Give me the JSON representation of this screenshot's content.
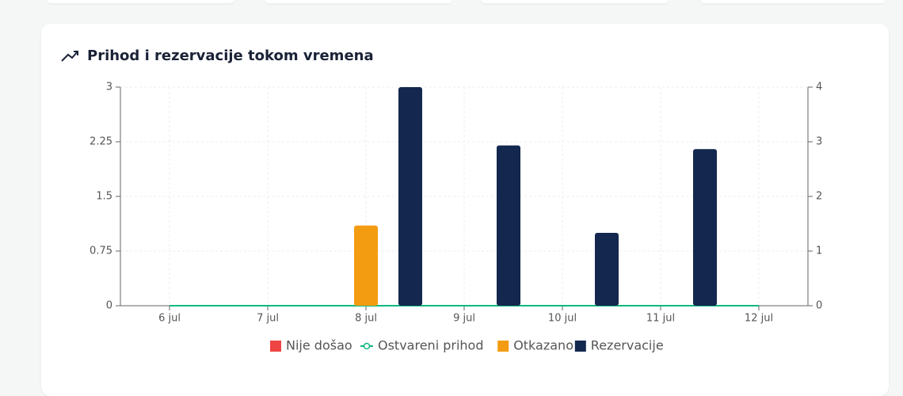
{
  "chart_data": {
    "type": "bar",
    "title": "Prihod i rezervacije tokom vremena",
    "categories": [
      "6 jul",
      "7 jul",
      "8 jul",
      "9 jul",
      "10 jul",
      "11 jul",
      "12 jul"
    ],
    "series": [
      {
        "name": "Nije došao",
        "color": "#ef4444",
        "type": "bar",
        "values": [
          0,
          0,
          0,
          0,
          0,
          0,
          0
        ]
      },
      {
        "name": "Ostvareni prihod",
        "color": "#10b981",
        "type": "line",
        "axis": "y2",
        "values": [
          0,
          0,
          0,
          0,
          0,
          0,
          0
        ]
      },
      {
        "name": "Otkazano",
        "color": "#f39c12",
        "type": "bar",
        "values": [
          0,
          0,
          1.1,
          0,
          0,
          0,
          0
        ]
      },
      {
        "name": "Rezervacije",
        "color": "#14274e",
        "type": "bar",
        "values": [
          0,
          0,
          3,
          2.2,
          1,
          2.15,
          0
        ]
      }
    ],
    "ylim": [
      0,
      3
    ],
    "yticks": [
      0,
      0.75,
      1.5,
      2.25,
      3
    ],
    "y2lim": [
      0,
      4
    ],
    "y2ticks": [
      0,
      1,
      2,
      3,
      4
    ],
    "grid": true
  }
}
